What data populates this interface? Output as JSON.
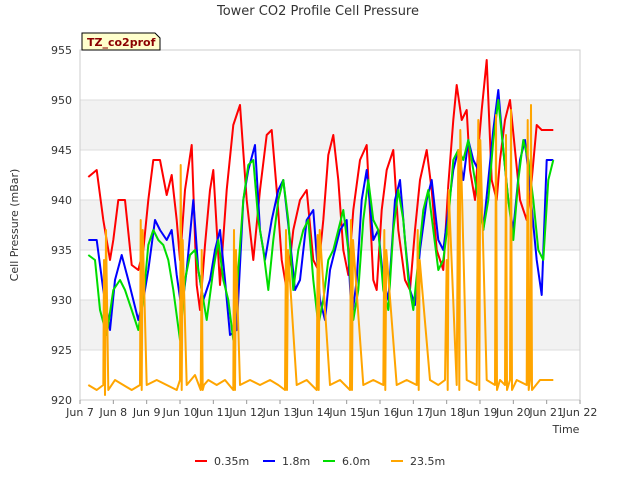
{
  "chart_data": {
    "type": "line",
    "title": "Tower CO2 Profile Cell Pressure",
    "xlabel": "Time",
    "ylabel": "Cell Pressure (mBar)",
    "badge": "TZ_co2prof",
    "xlim": [
      7,
      22
    ],
    "ylim": [
      920,
      955
    ],
    "x_ticks": [
      7,
      8,
      9,
      10,
      11,
      12,
      13,
      14,
      15,
      16,
      17,
      18,
      19,
      20,
      21,
      22
    ],
    "x_tick_labels": [
      "Jun 7",
      "Jun 8",
      "Jun 9",
      "Jun 10",
      "Jun 11",
      "Jun 12",
      "Jun 13",
      "Jun 14",
      "Jun 15",
      "Jun 16",
      "Jun 17",
      "Jun 18",
      "Jun 19",
      "Jun 20",
      "Jun 21",
      "Jun 22"
    ],
    "y_ticks": [
      920,
      925,
      930,
      935,
      940,
      945,
      950,
      955
    ],
    "y_tick_labels": [
      "920",
      "925",
      "930",
      "935",
      "940",
      "945",
      "950",
      "955"
    ],
    "grid": true,
    "legend_position": "bottom",
    "series": [
      {
        "name": "0.35m",
        "color": "#ff0000",
        "x": [
          7.25,
          7.5,
          7.7,
          7.9,
          8.0,
          8.15,
          8.35,
          8.55,
          8.75,
          8.9,
          9.05,
          9.2,
          9.4,
          9.6,
          9.75,
          9.9,
          10.0,
          10.15,
          10.35,
          10.5,
          10.6,
          10.75,
          10.9,
          11.0,
          11.2,
          11.4,
          11.6,
          11.8,
          12.0,
          12.2,
          12.4,
          12.6,
          12.75,
          12.9,
          13.05,
          13.2,
          13.4,
          13.6,
          13.8,
          14.0,
          14.15,
          14.3,
          14.45,
          14.6,
          14.75,
          14.9,
          15.05,
          15.2,
          15.4,
          15.6,
          15.8,
          15.9,
          16.05,
          16.2,
          16.4,
          16.55,
          16.75,
          16.9,
          17.05,
          17.2,
          17.4,
          17.55,
          17.7,
          17.9,
          18.05,
          18.2,
          18.3,
          18.45,
          18.6,
          18.7,
          18.85,
          18.95,
          19.05,
          19.2,
          19.35,
          19.5,
          19.6,
          19.75,
          19.9,
          20.05,
          20.2,
          20.4,
          20.55,
          20.7,
          20.85,
          21.0,
          21.2
        ],
        "y": [
          942.3,
          943.0,
          938.0,
          934.0,
          936.0,
          940.0,
          940.0,
          933.5,
          933.0,
          935.0,
          940.0,
          944.0,
          944.0,
          940.5,
          942.5,
          938.0,
          934.0,
          941.0,
          945.5,
          931.5,
          929.0,
          935.5,
          941.0,
          943.0,
          931.5,
          941.0,
          947.5,
          949.5,
          940.0,
          934.0,
          941.0,
          946.5,
          947.0,
          941.0,
          934.0,
          931.0,
          937.0,
          940.0,
          941.0,
          934.0,
          933.0,
          938.0,
          944.5,
          946.5,
          942.0,
          935.0,
          932.5,
          939.0,
          944.0,
          945.5,
          932.0,
          931.0,
          939.0,
          943.0,
          945.0,
          937.0,
          932.0,
          931.0,
          937.0,
          942.0,
          945.0,
          941.0,
          935.0,
          933.0,
          941.5,
          948.0,
          951.5,
          948.0,
          949.0,
          943.0,
          940.0,
          945.0,
          949.0,
          954.0,
          942.0,
          940.0,
          944.0,
          948.0,
          950.0,
          945.0,
          940.0,
          938.0,
          942.0,
          947.5,
          947.0,
          947.0,
          947.0
        ]
      },
      {
        "name": "1.8m",
        "color": "#0000ff",
        "x": [
          7.25,
          7.5,
          7.7,
          7.9,
          8.05,
          8.25,
          8.45,
          8.6,
          8.75,
          8.9,
          9.05,
          9.25,
          9.4,
          9.6,
          9.75,
          9.9,
          10.05,
          10.2,
          10.4,
          10.55,
          10.7,
          10.9,
          11.05,
          11.2,
          11.35,
          11.5,
          11.7,
          11.9,
          12.05,
          12.25,
          12.4,
          12.55,
          12.75,
          12.95,
          13.1,
          13.3,
          13.45,
          13.6,
          13.8,
          14.0,
          14.2,
          14.35,
          14.5,
          14.65,
          14.8,
          15.0,
          15.15,
          15.3,
          15.45,
          15.6,
          15.8,
          15.95,
          16.1,
          16.25,
          16.45,
          16.6,
          16.75,
          16.9,
          17.05,
          17.2,
          17.4,
          17.55,
          17.75,
          17.9,
          18.05,
          18.2,
          18.35,
          18.5,
          18.65,
          18.8,
          18.95,
          19.1,
          19.25,
          19.4,
          19.55,
          19.7,
          19.85,
          20.0,
          20.2,
          20.35,
          20.5,
          20.7,
          20.85,
          21.0,
          21.2
        ],
        "y": [
          936.0,
          936.0,
          931.0,
          927.0,
          932.0,
          934.5,
          932.0,
          930.0,
          928.0,
          930.0,
          933.0,
          938.0,
          937.0,
          936.0,
          937.0,
          932.5,
          929.0,
          933.0,
          940.0,
          933.0,
          930.0,
          932.0,
          935.0,
          937.0,
          932.0,
          926.5,
          927.0,
          940.0,
          943.0,
          945.5,
          937.0,
          934.0,
          938.0,
          941.0,
          942.0,
          936.0,
          931.0,
          932.0,
          938.0,
          939.0,
          930.0,
          928.0,
          933.0,
          935.0,
          937.0,
          938.0,
          928.0,
          932.0,
          940.0,
          943.0,
          936.0,
          937.0,
          932.0,
          930.0,
          940.0,
          942.0,
          936.0,
          931.0,
          929.5,
          935.0,
          940.0,
          942.0,
          936.0,
          935.0,
          939.0,
          943.0,
          945.0,
          942.0,
          946.0,
          944.0,
          943.0,
          937.0,
          942.0,
          947.0,
          951.0,
          945.0,
          940.0,
          937.0,
          944.0,
          946.0,
          941.0,
          934.0,
          930.5,
          944.0,
          944.0
        ]
      },
      {
        "name": "6.0m",
        "color": "#00dd00",
        "x": [
          7.25,
          7.45,
          7.6,
          7.8,
          8.0,
          8.2,
          8.35,
          8.55,
          8.75,
          8.9,
          9.05,
          9.2,
          9.35,
          9.5,
          9.65,
          9.8,
          10.0,
          10.15,
          10.3,
          10.45,
          10.6,
          10.8,
          11.0,
          11.15,
          11.3,
          11.45,
          11.6,
          11.75,
          11.9,
          12.05,
          12.2,
          12.35,
          12.5,
          12.65,
          12.8,
          12.95,
          13.1,
          13.25,
          13.4,
          13.55,
          13.7,
          13.85,
          14.0,
          14.15,
          14.3,
          14.45,
          14.6,
          14.75,
          14.9,
          15.05,
          15.2,
          15.35,
          15.5,
          15.65,
          15.8,
          15.95,
          16.1,
          16.25,
          16.4,
          16.55,
          16.7,
          16.85,
          17.0,
          17.15,
          17.3,
          17.45,
          17.6,
          17.75,
          17.9,
          18.05,
          18.2,
          18.35,
          18.5,
          18.65,
          18.8,
          18.95,
          19.1,
          19.25,
          19.4,
          19.55,
          19.7,
          19.85,
          20.0,
          20.15,
          20.3,
          20.45,
          20.6,
          20.75,
          20.9,
          21.05,
          21.2
        ],
        "y": [
          934.5,
          934.0,
          929.0,
          926.5,
          931.0,
          932.0,
          931.0,
          929.0,
          927.0,
          930.0,
          935.5,
          937.0,
          936.0,
          935.5,
          934.0,
          931.0,
          926.0,
          932.0,
          934.5,
          935.0,
          932.0,
          928.0,
          933.0,
          936.0,
          932.0,
          930.0,
          926.0,
          933.0,
          940.0,
          943.5,
          944.0,
          938.0,
          935.0,
          931.0,
          936.0,
          940.0,
          942.0,
          938.0,
          931.0,
          935.0,
          937.0,
          938.0,
          932.0,
          927.5,
          930.0,
          934.0,
          935.0,
          937.0,
          939.0,
          935.0,
          928.0,
          931.0,
          938.0,
          942.0,
          938.0,
          937.0,
          931.0,
          929.0,
          937.0,
          941.0,
          938.0,
          932.0,
          929.0,
          934.0,
          939.0,
          941.0,
          937.0,
          933.0,
          934.0,
          938.0,
          944.0,
          945.0,
          944.0,
          946.0,
          943.0,
          940.0,
          937.0,
          940.0,
          946.0,
          950.0,
          945.0,
          940.0,
          936.0,
          942.0,
          946.0,
          944.0,
          940.0,
          935.0,
          934.0,
          942.0,
          944.0
        ]
      },
      {
        "name": "23.5m",
        "color": "#ffa500",
        "x": [
          7.25,
          7.5,
          7.7,
          7.72,
          7.75,
          7.78,
          7.85,
          8.05,
          8.3,
          8.55,
          8.8,
          8.82,
          8.85,
          8.88,
          9.0,
          9.3,
          9.6,
          9.9,
          10.0,
          10.02,
          10.05,
          10.08,
          10.2,
          10.45,
          10.62,
          10.65,
          10.68,
          10.72,
          10.85,
          11.1,
          11.35,
          11.6,
          11.62,
          11.65,
          11.68,
          11.8,
          12.1,
          12.4,
          12.7,
          12.95,
          13.15,
          13.18,
          13.21,
          13.24,
          13.5,
          13.8,
          14.1,
          14.13,
          14.16,
          14.19,
          14.5,
          14.8,
          15.1,
          15.13,
          15.16,
          15.19,
          15.5,
          15.8,
          16.1,
          16.13,
          16.16,
          16.19,
          16.5,
          16.8,
          17.1,
          17.13,
          17.16,
          17.19,
          17.5,
          17.75,
          17.95,
          18.0,
          18.03,
          18.06,
          18.3,
          18.35,
          18.38,
          18.41,
          18.6,
          18.9,
          18.95,
          18.98,
          19.01,
          19.2,
          19.45,
          19.48,
          19.51,
          19.6,
          19.75,
          19.78,
          19.81,
          19.9,
          19.93,
          19.96,
          20.1,
          20.4,
          20.43,
          20.46,
          20.5,
          20.53,
          20.56,
          20.8,
          20.95,
          21.2
        ],
        "y": [
          921.5,
          921.0,
          921.5,
          934.0,
          920.5,
          937.0,
          921.0,
          922.0,
          921.5,
          921.0,
          921.5,
          938.0,
          921.0,
          937.0,
          921.5,
          922.0,
          921.5,
          921.0,
          922.0,
          943.5,
          921.0,
          936.0,
          921.5,
          922.5,
          921.0,
          935.0,
          921.0,
          921.5,
          922.0,
          921.5,
          922.0,
          921.0,
          937.0,
          921.0,
          935.0,
          921.5,
          922.0,
          921.5,
          922.0,
          921.5,
          921.0,
          937.0,
          921.0,
          935.0,
          921.5,
          922.0,
          921.0,
          936.5,
          921.0,
          937.0,
          921.5,
          922.0,
          921.0,
          938.0,
          921.0,
          936.0,
          921.5,
          922.0,
          921.5,
          937.0,
          921.0,
          935.0,
          921.5,
          922.0,
          921.5,
          937.0,
          921.0,
          934.0,
          922.0,
          921.5,
          922.0,
          934.0,
          921.0,
          941.0,
          921.5,
          945.0,
          921.0,
          947.0,
          922.0,
          921.5,
          948.0,
          921.0,
          946.0,
          922.0,
          921.5,
          948.5,
          921.0,
          922.0,
          921.5,
          946.5,
          921.0,
          922.0,
          949.0,
          921.0,
          922.0,
          921.5,
          948.0,
          921.0,
          922.0,
          949.5,
          921.0,
          922.0,
          922.0,
          922.0
        ]
      }
    ]
  }
}
